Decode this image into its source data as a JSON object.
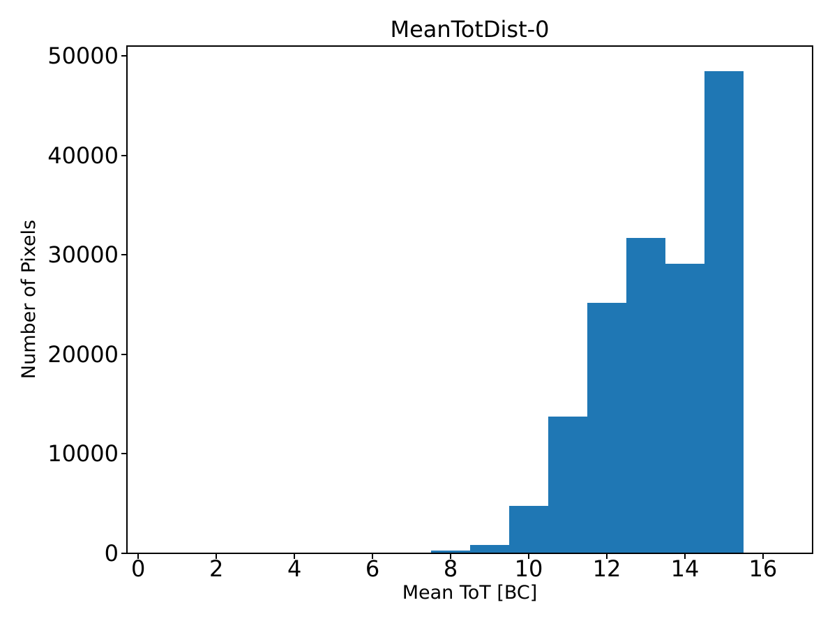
{
  "figure": {
    "background": "#ffffff",
    "text_color": "#000000"
  },
  "chart_data": {
    "type": "bar",
    "subtype": "histogram",
    "title": "MeanTotDist-0",
    "xlabel": "Mean ToT [BC]",
    "ylabel": "Number of Pixels",
    "bar_color": "#1f77b4",
    "bin_edges": [
      7.5,
      8.5,
      9.5,
      10.5,
      11.5,
      12.5,
      13.5,
      14.5,
      15.5
    ],
    "counts": [
      250,
      840,
      4770,
      13740,
      25170,
      31700,
      29100,
      48460
    ],
    "xlim": [
      -0.29,
      17.27
    ],
    "ylim": [
      0,
      51000
    ],
    "xticks": [
      0,
      2,
      4,
      6,
      8,
      10,
      12,
      14,
      16
    ],
    "yticks": [
      0,
      10000,
      20000,
      30000,
      40000,
      50000
    ],
    "grid": false,
    "legend": null
  }
}
